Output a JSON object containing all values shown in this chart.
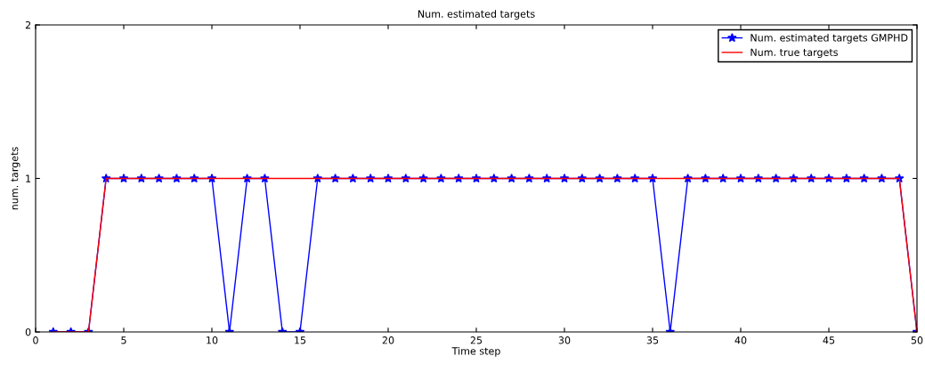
{
  "chart_data": {
    "type": "line",
    "title": "Num. estimated targets",
    "xlabel": "Time step",
    "ylabel": "num. targets",
    "x": [
      1,
      2,
      3,
      4,
      5,
      6,
      7,
      8,
      9,
      10,
      11,
      12,
      13,
      14,
      15,
      16,
      17,
      18,
      19,
      20,
      21,
      22,
      23,
      24,
      25,
      26,
      27,
      28,
      29,
      30,
      31,
      32,
      33,
      34,
      35,
      36,
      37,
      38,
      39,
      40,
      41,
      42,
      43,
      44,
      45,
      46,
      47,
      48,
      49,
      50
    ],
    "series": [
      {
        "name": "Num. estimated targets GMPHD",
        "color": "#0000ff",
        "marker": "star",
        "values": [
          0,
          0,
          0,
          1,
          1,
          1,
          1,
          1,
          1,
          1,
          0,
          1,
          1,
          0,
          0,
          1,
          1,
          1,
          1,
          1,
          1,
          1,
          1,
          1,
          1,
          1,
          1,
          1,
          1,
          1,
          1,
          1,
          1,
          1,
          1,
          0,
          1,
          1,
          1,
          1,
          1,
          1,
          1,
          1,
          1,
          1,
          1,
          1,
          1,
          0
        ]
      },
      {
        "name": "Num. true targets",
        "color": "#ff0000",
        "marker": "none",
        "values": [
          0,
          0,
          0,
          1,
          1,
          1,
          1,
          1,
          1,
          1,
          1,
          1,
          1,
          1,
          1,
          1,
          1,
          1,
          1,
          1,
          1,
          1,
          1,
          1,
          1,
          1,
          1,
          1,
          1,
          1,
          1,
          1,
          1,
          1,
          1,
          1,
          1,
          1,
          1,
          1,
          1,
          1,
          1,
          1,
          1,
          1,
          1,
          1,
          1,
          0
        ]
      }
    ],
    "xlim": [
      0,
      50
    ],
    "xticks": [
      0,
      5,
      10,
      15,
      20,
      25,
      30,
      35,
      40,
      45,
      50
    ],
    "ylim": [
      0,
      2
    ],
    "yticks": [
      0,
      1,
      2
    ],
    "grid": false,
    "legend": "top right"
  }
}
